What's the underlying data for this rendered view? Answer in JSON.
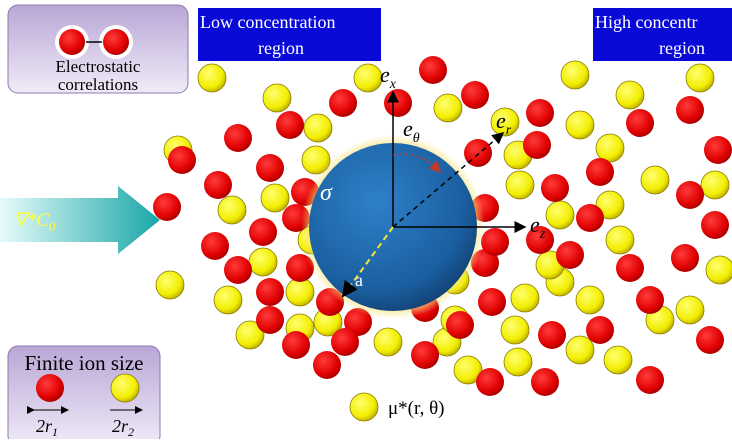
{
  "regions": {
    "low": {
      "lines": [
        "Low concentration",
        "region"
      ]
    },
    "high": {
      "lines": [
        "High concentr",
        "region"
      ]
    }
  },
  "insets": {
    "electrostatic": {
      "lines": [
        "Electrostatic",
        "correlations"
      ]
    },
    "finite_size": {
      "title": "Finite ion size",
      "left": {
        "base": "2r",
        "sub": "1"
      },
      "right": {
        "base": "2r",
        "sub": "2"
      }
    }
  },
  "gradient": {
    "base": "∇*C",
    "sub": "0"
  },
  "sphere": {
    "charge": "σ",
    "radius": "a"
  },
  "axes": {
    "ex": {
      "base": "e",
      "sub": "x"
    },
    "etheta": {
      "base": "e",
      "sub": "θ"
    },
    "er": {
      "base": "e",
      "sub": "r"
    },
    "ez": {
      "base": "e",
      "sub": "z"
    }
  },
  "potential": "μ*(r, θ)"
}
